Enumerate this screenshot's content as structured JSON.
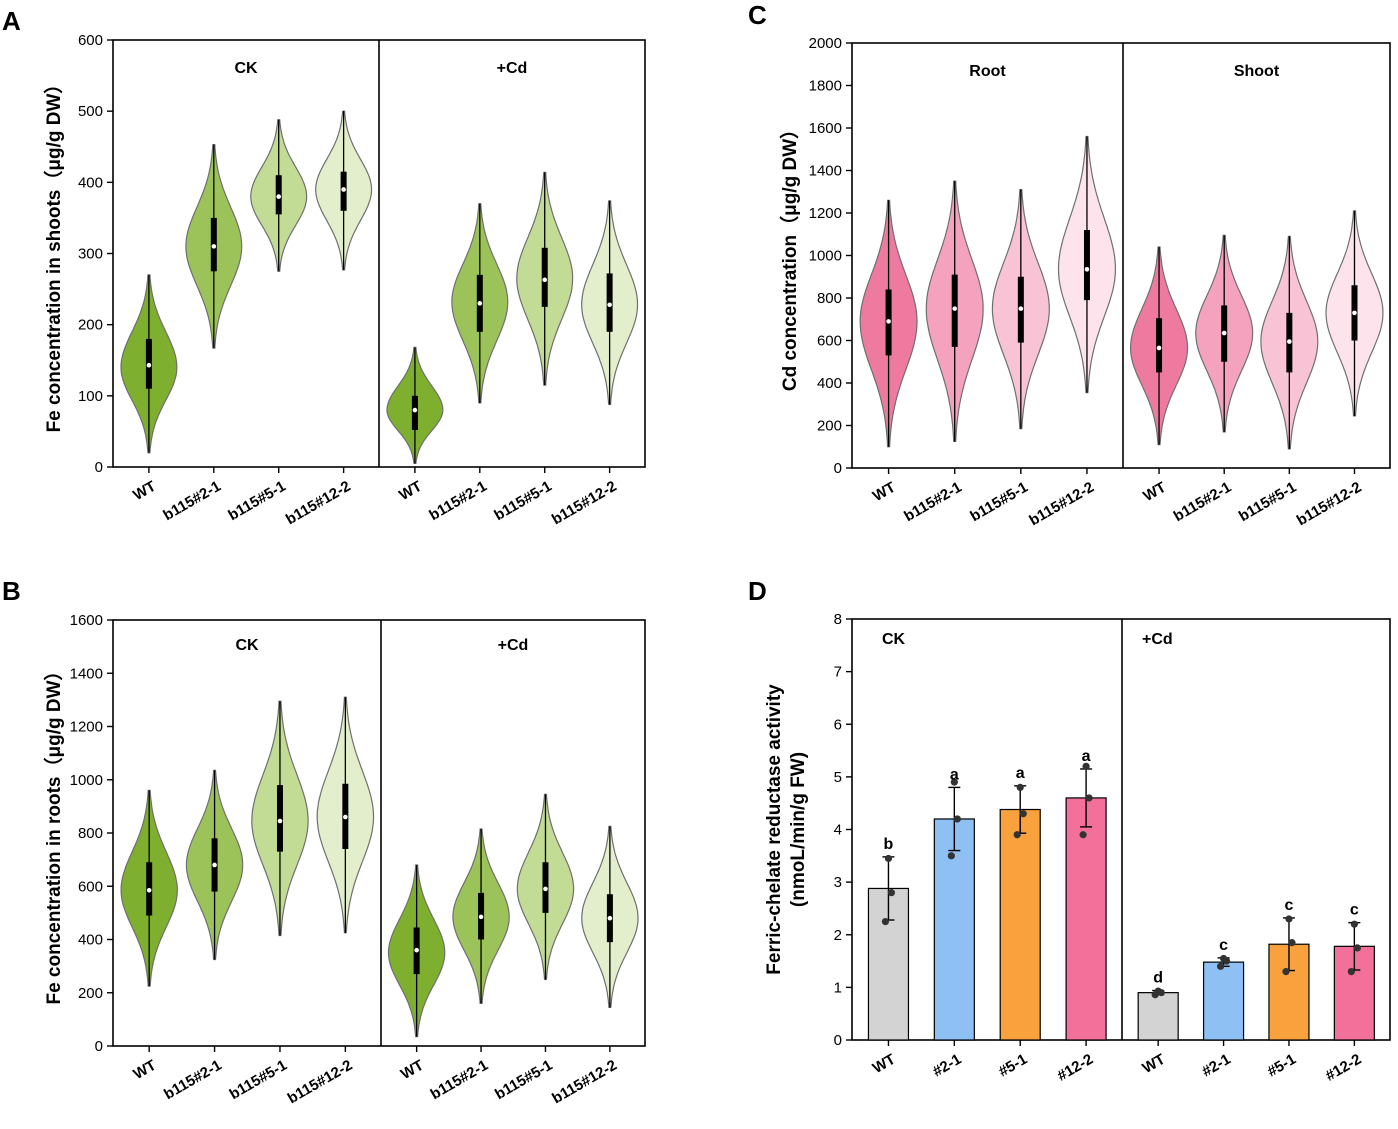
{
  "chart_data": [
    {
      "panel": "A",
      "type": "violin",
      "ylabel": "Fe concentration in shoots（μg/g DW）",
      "ylim": [
        0,
        600
      ],
      "yticks": [
        0,
        100,
        200,
        300,
        400,
        500,
        600
      ],
      "groups": [
        "CK",
        "+Cd"
      ],
      "categories": [
        "WT",
        "b115#2-1",
        "b115#5-1",
        "b115#12-2"
      ],
      "colors": [
        "#7eaf2f",
        "#9bc35a",
        "#c2dc96",
        "#e3efcc"
      ],
      "series": [
        {
          "name": "CK",
          "violins": [
            {
              "min": 20,
              "q1": 110,
              "median": 143,
              "q3": 180,
              "max": 270,
              "mode": 140
            },
            {
              "min": 167,
              "q1": 275,
              "median": 310,
              "q3": 350,
              "max": 453,
              "mode": 310
            },
            {
              "min": 275,
              "q1": 355,
              "median": 380,
              "q3": 410,
              "max": 488,
              "mode": 380
            },
            {
              "min": 277,
              "q1": 360,
              "median": 390,
              "q3": 415,
              "max": 500,
              "mode": 390
            }
          ]
        },
        {
          "name": "+Cd",
          "violins": [
            {
              "min": 5,
              "q1": 52,
              "median": 80,
              "q3": 100,
              "max": 168,
              "mode": 80
            },
            {
              "min": 90,
              "q1": 190,
              "median": 230,
              "q3": 270,
              "max": 370,
              "mode": 232
            },
            {
              "min": 115,
              "q1": 225,
              "median": 263,
              "q3": 308,
              "max": 414,
              "mode": 265
            },
            {
              "min": 88,
              "q1": 190,
              "median": 228,
              "q3": 272,
              "max": 374,
              "mode": 228
            }
          ]
        }
      ]
    },
    {
      "panel": "B",
      "type": "violin",
      "ylabel": "Fe concentration in roots（μg/g DW）",
      "ylim": [
        0,
        1600
      ],
      "yticks": [
        0,
        200,
        400,
        600,
        800,
        1000,
        1200,
        1400,
        1600
      ],
      "groups": [
        "CK",
        "+Cd"
      ],
      "categories": [
        "WT",
        "b115#2-1",
        "b115#5-1",
        "b115#12-2"
      ],
      "colors": [
        "#7eaf2f",
        "#9bc35a",
        "#c2dc96",
        "#e3efcc"
      ],
      "series": [
        {
          "name": "CK",
          "violins": [
            {
              "min": 225,
              "q1": 490,
              "median": 585,
              "q3": 690,
              "max": 960,
              "mode": 585
            },
            {
              "min": 325,
              "q1": 580,
              "median": 680,
              "q3": 780,
              "max": 1035,
              "mode": 680
            },
            {
              "min": 415,
              "q1": 730,
              "median": 845,
              "q3": 980,
              "max": 1295,
              "mode": 845
            },
            {
              "min": 425,
              "q1": 740,
              "median": 860,
              "q3": 985,
              "max": 1310,
              "mode": 860
            }
          ]
        },
        {
          "name": "+Cd",
          "violins": [
            {
              "min": 35,
              "q1": 270,
              "median": 360,
              "q3": 445,
              "max": 680,
              "mode": 350
            },
            {
              "min": 160,
              "q1": 400,
              "median": 485,
              "q3": 575,
              "max": 815,
              "mode": 485
            },
            {
              "min": 250,
              "q1": 500,
              "median": 590,
              "q3": 690,
              "max": 945,
              "mode": 590
            },
            {
              "min": 145,
              "q1": 390,
              "median": 480,
              "q3": 570,
              "max": 825,
              "mode": 480
            }
          ]
        }
      ]
    },
    {
      "panel": "C",
      "type": "violin",
      "ylabel": "Cd concentration（μg/g DW）",
      "ylim": [
        0,
        2000
      ],
      "yticks": [
        0,
        200,
        400,
        600,
        800,
        1000,
        1200,
        1400,
        1600,
        1800,
        2000
      ],
      "groups": [
        "Root",
        "Shoot"
      ],
      "categories": [
        "WT",
        "b115#2-1",
        "b115#5-1",
        "b115#12-2"
      ],
      "colors": [
        "#ee7a9f",
        "#f4a2bd",
        "#f8c4d5",
        "#fde3ec"
      ],
      "series": [
        {
          "name": "Root",
          "violins": [
            {
              "min": 100,
              "q1": 530,
              "median": 690,
              "q3": 840,
              "max": 1260,
              "mode": 690
            },
            {
              "min": 125,
              "q1": 570,
              "median": 750,
              "q3": 910,
              "max": 1350,
              "mode": 750
            },
            {
              "min": 185,
              "q1": 590,
              "median": 750,
              "q3": 900,
              "max": 1310,
              "mode": 750
            },
            {
              "min": 355,
              "q1": 790,
              "median": 935,
              "q3": 1120,
              "max": 1560,
              "mode": 935
            }
          ]
        },
        {
          "name": "Shoot",
          "violins": [
            {
              "min": 110,
              "q1": 450,
              "median": 565,
              "q3": 705,
              "max": 1040,
              "mode": 565
            },
            {
              "min": 170,
              "q1": 500,
              "median": 635,
              "q3": 765,
              "max": 1095,
              "mode": 635
            },
            {
              "min": 90,
              "q1": 450,
              "median": 595,
              "q3": 730,
              "max": 1090,
              "mode": 595
            },
            {
              "min": 245,
              "q1": 600,
              "median": 730,
              "q3": 860,
              "max": 1210,
              "mode": 730
            }
          ]
        }
      ]
    },
    {
      "panel": "D",
      "type": "bar",
      "ylabel_line1": "Ferric-chelate reductase activity",
      "ylabel_line2": "(nmoL/min/g FW)",
      "ylim": [
        0,
        8
      ],
      "yticks": [
        0,
        1,
        2,
        3,
        4,
        5,
        6,
        7,
        8
      ],
      "groups": [
        "CK",
        "+Cd"
      ],
      "categories": [
        "WT",
        "#2-1",
        "#5-1",
        "#12-2"
      ],
      "colors": [
        "#d3d3d3",
        "#8ec0f4",
        "#f8a13d",
        "#f3709a"
      ],
      "series": [
        {
          "name": "CK",
          "bars": [
            {
              "value": 2.88,
              "error": 0.6,
              "points": [
                2.25,
                2.8,
                3.45
              ],
              "label": "b"
            },
            {
              "value": 4.2,
              "error": 0.6,
              "points": [
                3.5,
                4.2,
                4.9
              ],
              "label": "a"
            },
            {
              "value": 4.38,
              "error": 0.45,
              "points": [
                3.9,
                4.3,
                4.8
              ],
              "label": "a"
            },
            {
              "value": 4.6,
              "error": 0.55,
              "points": [
                3.9,
                4.6,
                5.2
              ],
              "label": "a"
            }
          ]
        },
        {
          "name": "+Cd",
          "bars": [
            {
              "value": 0.9,
              "error": 0.04,
              "points": [
                0.86,
                0.9,
                0.93
              ],
              "label": "d"
            },
            {
              "value": 1.48,
              "error": 0.08,
              "points": [
                1.4,
                1.5,
                1.55
              ],
              "label": "c"
            },
            {
              "value": 1.82,
              "error": 0.5,
              "points": [
                1.3,
                1.85,
                2.3
              ],
              "label": "c"
            },
            {
              "value": 1.78,
              "error": 0.45,
              "points": [
                1.3,
                1.75,
                2.2
              ],
              "label": "c"
            }
          ]
        }
      ]
    }
  ]
}
